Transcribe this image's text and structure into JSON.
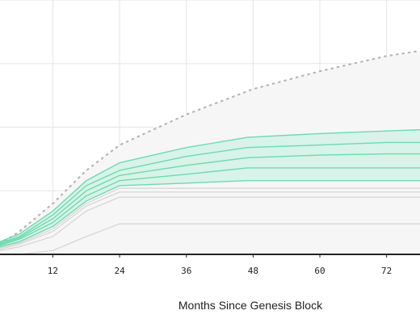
{
  "chart_data": {
    "type": "area",
    "xlabel": "Months Since Genesis Block",
    "x_ticks": [
      "12",
      "24",
      "36",
      "48",
      "60",
      "72"
    ],
    "x_tick_values": [
      12,
      24,
      36,
      48,
      60,
      72
    ],
    "xlim": [
      2.5,
      78
    ],
    "ylim": [
      0,
      100
    ],
    "grid": true,
    "colors": {
      "band_fill": "#d5f3e8",
      "band_line": "#6fd9b2",
      "gray_line": "#d4d4d4",
      "max_fill": "#f6f6f6",
      "dotted": "#b5b5b5",
      "grid": "#e5e5e5",
      "axis": "#222222"
    },
    "series": [
      {
        "role": "max-envelope",
        "style": "dotted",
        "points": [
          [
            2.5,
            4
          ],
          [
            6,
            9
          ],
          [
            12,
            20
          ],
          [
            18,
            33
          ],
          [
            24,
            43
          ],
          [
            36,
            55
          ],
          [
            48,
            65
          ],
          [
            60,
            72
          ],
          [
            72,
            78
          ],
          [
            78,
            80
          ]
        ]
      },
      {
        "role": "band-upper",
        "points": [
          [
            2.5,
            5
          ],
          [
            6,
            8
          ],
          [
            12,
            17
          ],
          [
            18,
            29
          ],
          [
            24,
            36
          ],
          [
            36,
            42
          ],
          [
            47,
            46
          ],
          [
            60,
            47.5
          ],
          [
            72,
            48.5
          ],
          [
            78,
            49
          ]
        ]
      },
      {
        "role": "band-line",
        "points": [
          [
            2.5,
            4.5
          ],
          [
            6,
            7
          ],
          [
            12,
            15.5
          ],
          [
            18,
            27
          ],
          [
            24,
            33
          ],
          [
            36,
            38.5
          ],
          [
            47,
            42
          ],
          [
            60,
            43
          ],
          [
            72,
            44
          ],
          [
            78,
            44
          ]
        ]
      },
      {
        "role": "band-line",
        "points": [
          [
            2.5,
            4
          ],
          [
            6,
            6.5
          ],
          [
            12,
            14
          ],
          [
            18,
            25
          ],
          [
            24,
            31
          ],
          [
            36,
            35
          ],
          [
            47,
            38
          ],
          [
            60,
            39
          ],
          [
            72,
            39.5
          ],
          [
            78,
            39.5
          ]
        ]
      },
      {
        "role": "band-line",
        "points": [
          [
            2.5,
            3.5
          ],
          [
            6,
            6
          ],
          [
            12,
            12.5
          ],
          [
            18,
            23
          ],
          [
            24,
            29
          ],
          [
            36,
            31.5
          ],
          [
            47,
            34
          ],
          [
            60,
            34
          ],
          [
            72,
            34
          ],
          [
            78,
            34
          ]
        ]
      },
      {
        "role": "band-lower",
        "points": [
          [
            2.5,
            3
          ],
          [
            6,
            5
          ],
          [
            12,
            11
          ],
          [
            18,
            21
          ],
          [
            24,
            27
          ],
          [
            36,
            28
          ],
          [
            47,
            29
          ],
          [
            60,
            29
          ],
          [
            72,
            29
          ],
          [
            78,
            29
          ]
        ]
      },
      {
        "role": "gray-line",
        "points": [
          [
            2.5,
            2.5
          ],
          [
            6,
            4.5
          ],
          [
            12,
            10
          ],
          [
            18,
            20
          ],
          [
            24,
            26
          ],
          [
            36,
            26
          ],
          [
            47,
            26
          ],
          [
            60,
            26
          ],
          [
            72,
            26
          ],
          [
            78,
            26
          ]
        ]
      },
      {
        "role": "gray-line",
        "points": [
          [
            2.5,
            2
          ],
          [
            6,
            4
          ],
          [
            12,
            9
          ],
          [
            18,
            19
          ],
          [
            24,
            24.5
          ],
          [
            36,
            24.5
          ],
          [
            47,
            24.5
          ],
          [
            60,
            24.5
          ],
          [
            72,
            24.5
          ],
          [
            78,
            24.5
          ]
        ]
      },
      {
        "role": "gray-line",
        "points": [
          [
            2.5,
            1.5
          ],
          [
            6,
            3
          ],
          [
            12,
            7
          ],
          [
            18,
            17
          ],
          [
            24,
            22.5
          ],
          [
            36,
            22.5
          ],
          [
            47,
            22.5
          ],
          [
            60,
            22.5
          ],
          [
            72,
            22.5
          ],
          [
            78,
            22.5
          ]
        ]
      },
      {
        "role": "gray-line",
        "points": [
          [
            6,
            0
          ],
          [
            12,
            1.5
          ],
          [
            18,
            7
          ],
          [
            24,
            12
          ],
          [
            36,
            12
          ],
          [
            47,
            12
          ],
          [
            60,
            12
          ],
          [
            72,
            12
          ],
          [
            78,
            12
          ]
        ]
      }
    ]
  }
}
